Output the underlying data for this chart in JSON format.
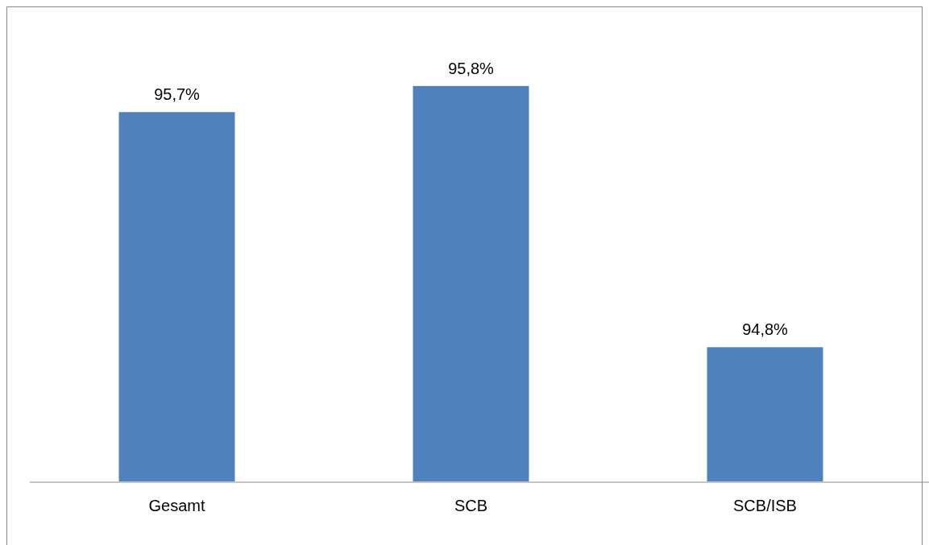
{
  "chart_data": {
    "type": "bar",
    "categories": [
      "Gesamt",
      "SCB",
      "SCB/ISB"
    ],
    "values": [
      95.7,
      95.8,
      94.8
    ],
    "value_labels": [
      "95,7%",
      "95,8%",
      "94,8%"
    ],
    "color": "#4f81bd",
    "ylim": [
      94.28,
      96.1
    ]
  }
}
